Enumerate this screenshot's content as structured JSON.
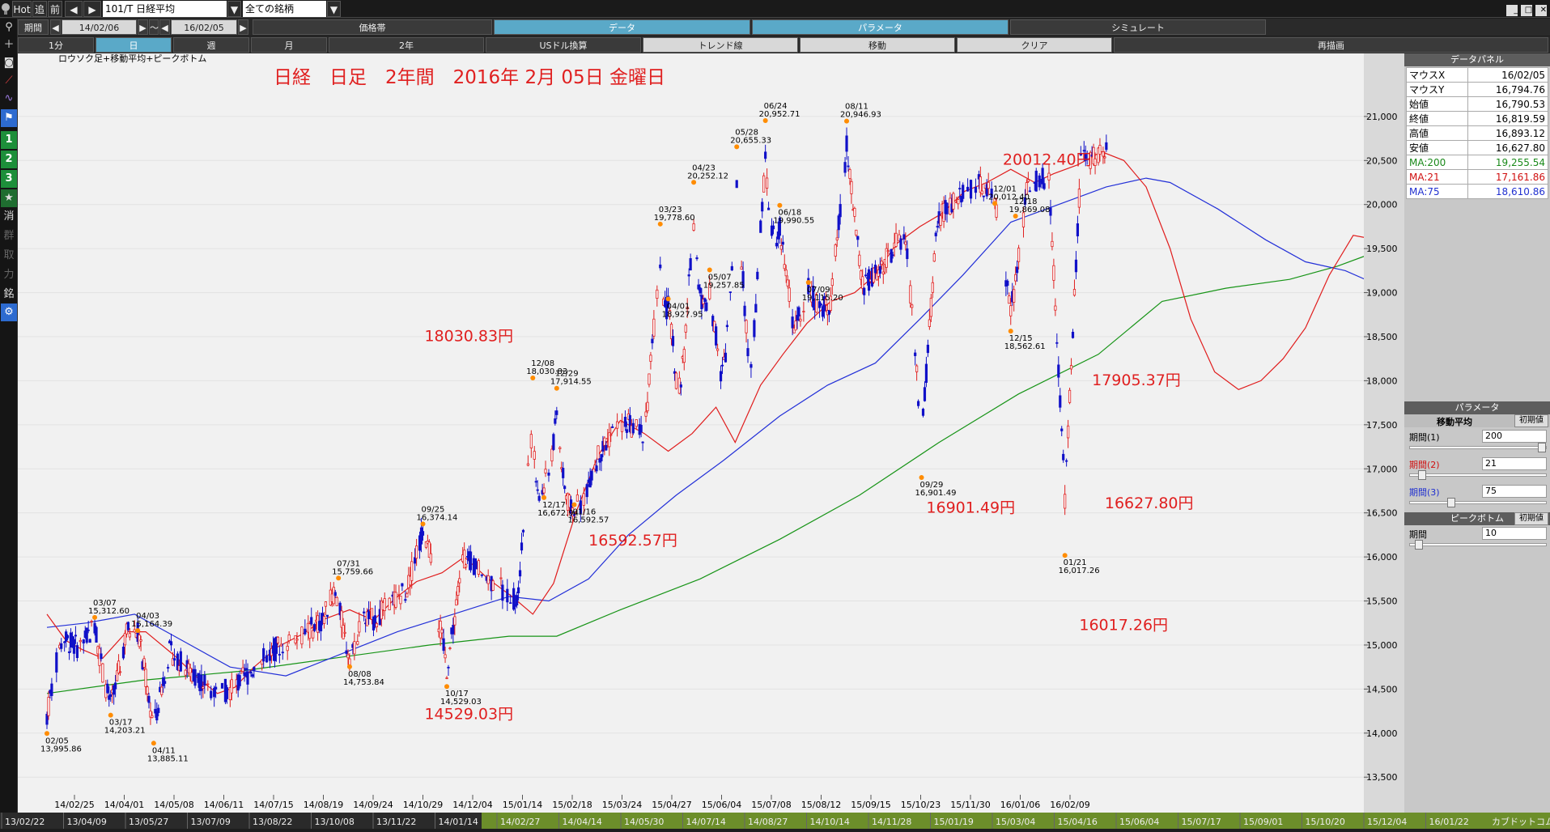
{
  "toolbar": {
    "hot": "Hot",
    "tsui": "追",
    "zen": "前",
    "symbol": "101/T 日経平均",
    "filter": "全ての銘柄"
  },
  "row2": {
    "period_label": "期間",
    "from": "14/02/06",
    "sep": "～",
    "to": "16/02/05",
    "tabs": [
      "価格帯",
      "データ",
      "パラメータ",
      "シミュレート"
    ]
  },
  "row3": {
    "tabs": [
      "1分",
      "日",
      "週",
      "月",
      "2年",
      "USドル換算",
      "トレンド線",
      "移動",
      "クリア",
      "再描画"
    ]
  },
  "leftbar": {
    "buttons": [
      "1",
      "2",
      "3",
      "★",
      "消",
      "群",
      "取",
      "力",
      "銘"
    ]
  },
  "chart": {
    "subtitle": "ロウソク足+移動平均+ピークボトム",
    "title": "日経　日足　2年間　2016年 2月 05日 金曜日"
  },
  "panel": {
    "data_title": "データパネル",
    "rows": [
      {
        "k": "マウスX",
        "v": "16/02/05"
      },
      {
        "k": "マウスY",
        "v": "16,794.76"
      },
      {
        "k": "始値",
        "v": "16,790.53"
      },
      {
        "k": "終値",
        "v": "16,819.59"
      },
      {
        "k": "高値",
        "v": "16,893.12"
      },
      {
        "k": "安値",
        "v": "16,627.80"
      }
    ],
    "ma_rows": [
      {
        "k": "MA:200",
        "v": "19,255.54",
        "color": "#1a8a1a"
      },
      {
        "k": "MA:21",
        "v": "17,161.86",
        "color": "#d01010"
      },
      {
        "k": "MA:75",
        "v": "18,610.86",
        "color": "#2030d0"
      }
    ],
    "param_title": "パラメータ",
    "ma_label": "移動平均",
    "init": "初期値",
    "p1_label": "期間(1)",
    "p1": "200",
    "p2_label": "期間(2)",
    "p2": "21",
    "p3_label": "期間(3)",
    "p3": "75",
    "pb_title": "ピークボトム",
    "pb_label": "期間",
    "pb": "10"
  },
  "bottom": {
    "dates": [
      "13/02/22",
      "13/04/09",
      "13/05/27",
      "13/07/09",
      "13/08/22",
      "13/10/08",
      "13/11/22",
      "14/01/14",
      "14/02/27",
      "14/04/14",
      "14/05/30",
      "14/07/14",
      "14/08/27",
      "14/10/14",
      "14/11/28",
      "15/01/19",
      "15/03/04",
      "15/04/16",
      "15/06/04",
      "15/07/17",
      "15/09/01",
      "15/10/20",
      "15/12/04",
      "16/01/22"
    ],
    "tail": "カブドットコム証券"
  },
  "chart_data": {
    "type": "candlestick",
    "title": "日経　日足　2年間　2016年 2月 05日 金曜日",
    "y_ticks": [
      13500,
      14000,
      14500,
      15000,
      15500,
      16000,
      16500,
      17000,
      17500,
      18000,
      18500,
      19000,
      19500,
      20000,
      20500,
      21000
    ],
    "x_ticks": [
      "14/02/25",
      "14/04/01",
      "14/05/08",
      "14/06/11",
      "14/07/15",
      "14/08/19",
      "14/09/24",
      "14/10/29",
      "14/12/04",
      "15/01/14",
      "15/02/18",
      "15/03/24",
      "15/04/27",
      "15/06/04",
      "15/07/08",
      "15/08/12",
      "15/09/15",
      "15/10/23",
      "15/11/30",
      "16/01/06",
      "16/02/09"
    ],
    "ylim": [
      13300,
      21550
    ],
    "series": [
      {
        "name": "MA:21",
        "color": "#e01c1c",
        "points": [
          [
            0,
            15350
          ],
          [
            12,
            15050
          ],
          [
            22,
            14950
          ],
          [
            35,
            14850
          ],
          [
            50,
            15150
          ],
          [
            62,
            15150
          ],
          [
            80,
            14880
          ],
          [
            95,
            14620
          ],
          [
            107,
            14450
          ],
          [
            118,
            14520
          ],
          [
            130,
            14750
          ],
          [
            145,
            14980
          ],
          [
            160,
            15120
          ],
          [
            175,
            15300
          ],
          [
            190,
            15400
          ],
          [
            205,
            15280
          ],
          [
            218,
            15520
          ],
          [
            232,
            15720
          ],
          [
            248,
            15820
          ],
          [
            262,
            16000
          ],
          [
            277,
            15750
          ],
          [
            292,
            15550
          ],
          [
            305,
            15350
          ],
          [
            318,
            15700
          ],
          [
            332,
            16500
          ],
          [
            346,
            17150
          ],
          [
            360,
            17550
          ],
          [
            375,
            17400
          ],
          [
            390,
            17200
          ],
          [
            405,
            17400
          ],
          [
            420,
            17700
          ],
          [
            432,
            17300
          ],
          [
            448,
            17950
          ],
          [
            462,
            18300
          ],
          [
            477,
            18650
          ],
          [
            492,
            18900
          ],
          [
            507,
            19000
          ],
          [
            520,
            19200
          ],
          [
            533,
            19550
          ],
          [
            548,
            19750
          ],
          [
            562,
            19900
          ],
          [
            576,
            20150
          ],
          [
            590,
            20250
          ],
          [
            605,
            20400
          ],
          [
            620,
            20250
          ],
          [
            632,
            20350
          ],
          [
            647,
            20450
          ],
          [
            662,
            20600
          ],
          [
            676,
            20500
          ],
          [
            690,
            20200
          ],
          [
            705,
            19500
          ],
          [
            718,
            18700
          ],
          [
            733,
            18100
          ],
          [
            748,
            17900
          ],
          [
            762,
            18000
          ],
          [
            776,
            18250
          ],
          [
            790,
            18600
          ],
          [
            805,
            19200
          ],
          [
            820,
            19650
          ],
          [
            835,
            19600
          ],
          [
            848,
            19150
          ],
          [
            862,
            18700
          ],
          [
            875,
            17900
          ],
          [
            890,
            17300
          ],
          [
            905,
            16900
          ],
          [
            918,
            17200
          ]
        ]
      },
      {
        "name": "MA:75",
        "color": "#2330d8",
        "points": [
          [
            0,
            15200
          ],
          [
            25,
            15250
          ],
          [
            55,
            15350
          ],
          [
            85,
            15050
          ],
          [
            115,
            14750
          ],
          [
            150,
            14650
          ],
          [
            185,
            14900
          ],
          [
            220,
            15150
          ],
          [
            255,
            15350
          ],
          [
            290,
            15550
          ],
          [
            315,
            15500
          ],
          [
            340,
            15750
          ],
          [
            365,
            16250
          ],
          [
            395,
            16700
          ],
          [
            425,
            17100
          ],
          [
            460,
            17600
          ],
          [
            490,
            17950
          ],
          [
            520,
            18200
          ],
          [
            548,
            18700
          ],
          [
            575,
            19200
          ],
          [
            605,
            19800
          ],
          [
            635,
            20000
          ],
          [
            665,
            20200
          ],
          [
            690,
            20300
          ],
          [
            705,
            20250
          ],
          [
            735,
            19950
          ],
          [
            765,
            19600
          ],
          [
            790,
            19350
          ],
          [
            815,
            19250
          ],
          [
            840,
            19050
          ],
          [
            865,
            18900
          ],
          [
            890,
            18750
          ],
          [
            918,
            18600
          ]
        ]
      },
      {
        "name": "MA:200",
        "color": "#179417",
        "points": [
          [
            0,
            14450
          ],
          [
            60,
            14600
          ],
          [
            120,
            14700
          ],
          [
            180,
            14850
          ],
          [
            240,
            15000
          ],
          [
            290,
            15100
          ],
          [
            320,
            15100
          ],
          [
            360,
            15400
          ],
          [
            410,
            15750
          ],
          [
            460,
            16200
          ],
          [
            510,
            16700
          ],
          [
            560,
            17300
          ],
          [
            610,
            17850
          ],
          [
            660,
            18300
          ],
          [
            700,
            18900
          ],
          [
            740,
            19050
          ],
          [
            780,
            19150
          ],
          [
            810,
            19300
          ],
          [
            840,
            19500
          ],
          [
            865,
            19500
          ],
          [
            890,
            19450
          ],
          [
            918,
            19250
          ]
        ]
      }
    ],
    "labels": [
      {
        "d": 0,
        "price": 13995.86,
        "date": "02/05",
        "t": "13,995.86",
        "k": "b"
      },
      {
        "d": 30,
        "price": 15312.6,
        "date": "03/07",
        "t": "15,312.60",
        "k": "p"
      },
      {
        "d": 40,
        "price": 14203.21,
        "date": "03/17",
        "t": "14,203.21",
        "k": "b"
      },
      {
        "d": 57,
        "price": 15164.39,
        "date": "04/03",
        "t": "15,164.39",
        "k": "p"
      },
      {
        "d": 67,
        "price": 13885.11,
        "date": "04/11",
        "t": "13,885.11",
        "k": "b"
      },
      {
        "d": 183,
        "price": 15759.66,
        "date": "07/31",
        "t": "15,759.66",
        "k": "p"
      },
      {
        "d": 190,
        "price": 14753.84,
        "date": "08/08",
        "t": "14,753.84",
        "k": "b"
      },
      {
        "d": 236,
        "price": 16374.14,
        "date": "09/25",
        "t": "16,374.14",
        "k": "p"
      },
      {
        "d": 251,
        "price": 14529.03,
        "date": "10/17",
        "t": "14,529.03",
        "k": "b"
      },
      {
        "d": 305,
        "price": 18030.83,
        "date": "12/08",
        "t": "18,030.83",
        "k": "p"
      },
      {
        "d": 312,
        "price": 16672.94,
        "date": "12/17",
        "t": "16,672.94",
        "k": "b"
      },
      {
        "d": 320,
        "price": 17914.55,
        "date": "12/29",
        "t": "17,914.55",
        "k": "p"
      },
      {
        "d": 331,
        "price": 16592.57,
        "date": "01/16",
        "t": "16,592.57",
        "k": "b"
      },
      {
        "d": 385,
        "price": 19778.6,
        "date": "03/23",
        "t": "19,778.60",
        "k": "p"
      },
      {
        "d": 390,
        "price": 18927.95,
        "date": "04/01",
        "t": "18,927.95",
        "k": "b"
      },
      {
        "d": 406,
        "price": 20252.12,
        "date": "04/23",
        "t": "20,252.12",
        "k": "p"
      },
      {
        "d": 416,
        "price": 19257.85,
        "date": "05/07",
        "t": "19,257.85",
        "k": "b"
      },
      {
        "d": 433,
        "price": 20655.33,
        "date": "05/28",
        "t": "20,655.33",
        "k": "p"
      },
      {
        "d": 451,
        "price": 20952.71,
        "date": "06/24",
        "t": "20,952.71",
        "k": "p"
      },
      {
        "d": 460,
        "price": 19990.55,
        "date": "06/18",
        "t": "19,990.55",
        "k": "b"
      },
      {
        "d": 478,
        "price": 19115.2,
        "date": "07/09",
        "t": "19,115.20",
        "k": "b"
      },
      {
        "d": 502,
        "price": 20946.93,
        "date": "08/11",
        "t": "20,946.93",
        "k": "p"
      },
      {
        "d": 549,
        "price": 16901.49,
        "date": "09/29",
        "t": "16,901.49",
        "k": "b"
      },
      {
        "d": 595,
        "price": 20012.4,
        "date": "12/01",
        "t": "20,012.40",
        "k": "p"
      },
      {
        "d": 608,
        "price": 19869.08,
        "date": "12/18",
        "t": "19,869.08",
        "k": "p"
      },
      {
        "d": 605,
        "price": 18562.61,
        "date": "12/15",
        "t": "18,562.61",
        "k": "b"
      },
      {
        "d": 639,
        "price": 16017.26,
        "date": "01/21",
        "t": "16,017.26",
        "k": "b"
      }
    ],
    "annotations": [
      {
        "d": 237,
        "price": 18450,
        "text": "18030.83円"
      },
      {
        "d": 340,
        "price": 16130,
        "text": "16592.57円"
      },
      {
        "d": 237,
        "price": 14160,
        "text": "14529.03円"
      },
      {
        "d": 552,
        "price": 16500,
        "text": "16901.49円"
      },
      {
        "d": 600,
        "price": 20450,
        "text": "20012.40円"
      },
      {
        "d": 656,
        "price": 17950,
        "text": "17905.37円"
      },
      {
        "d": 648,
        "price": 15170,
        "text": "16017.26円"
      },
      {
        "d": 664,
        "price": 16550,
        "text": "16627.80円"
      }
    ]
  }
}
